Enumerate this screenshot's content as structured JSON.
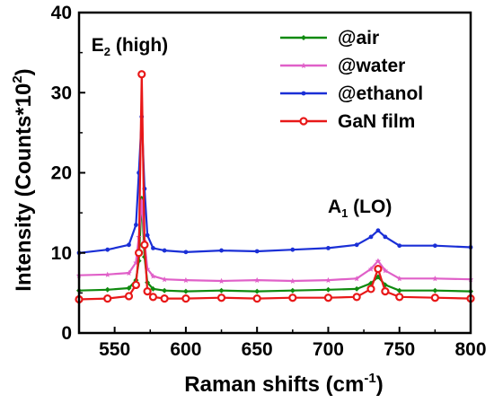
{
  "chart_data": {
    "type": "line",
    "xlabel_main": "Raman shifts (cm",
    "xlabel_sup": "-1",
    "xlabel_end": ")",
    "ylabel_main": "Intensity (Counts*10",
    "ylabel_sup": "2",
    "ylabel_end": ")",
    "xlim": [
      525,
      800
    ],
    "ylim": [
      0,
      40
    ],
    "x_ticks": [
      550,
      600,
      650,
      700,
      750,
      800
    ],
    "y_ticks": [
      0,
      10,
      20,
      30,
      40
    ],
    "grid": false,
    "legend_position": "top-right",
    "annotations": [
      {
        "main": "E",
        "sub": "2",
        "rest": " (high)",
        "x": 569,
        "y": 35.2
      },
      {
        "main": "A",
        "sub": "1",
        "rest": " (LO)",
        "x": 735,
        "y": 15.0
      }
    ],
    "series": [
      {
        "name": "@air",
        "color": "#0f8a0f",
        "marker": "diamond",
        "x": [
          525,
          545,
          560,
          565,
          567,
          569,
          571,
          573,
          577,
          585,
          600,
          625,
          650,
          675,
          700,
          720,
          730,
          735,
          740,
          750,
          775,
          800
        ],
        "y": [
          5.3,
          5.4,
          5.6,
          6.6,
          9.0,
          16.8,
          9.5,
          6.3,
          5.5,
          5.3,
          5.2,
          5.3,
          5.2,
          5.3,
          5.4,
          5.5,
          6.2,
          7.0,
          6.0,
          5.3,
          5.3,
          5.2
        ]
      },
      {
        "name": "@water",
        "color": "#e060c8",
        "marker": "star",
        "x": [
          525,
          545,
          560,
          565,
          567,
          569,
          571,
          573,
          577,
          585,
          600,
          625,
          650,
          675,
          700,
          720,
          730,
          735,
          740,
          750,
          775,
          800
        ],
        "y": [
          7.2,
          7.3,
          7.5,
          8.8,
          12.0,
          16.5,
          11.5,
          8.0,
          7.1,
          6.7,
          6.6,
          6.5,
          6.6,
          6.5,
          6.6,
          6.8,
          8.0,
          9.0,
          7.8,
          6.8,
          6.8,
          6.7
        ]
      },
      {
        "name": "@ethanol",
        "color": "#1a2fd6",
        "marker": "circle",
        "x": [
          525,
          545,
          560,
          565,
          567,
          569,
          571,
          573,
          577,
          585,
          600,
          625,
          650,
          675,
          700,
          720,
          730,
          735,
          740,
          750,
          775,
          800
        ],
        "y": [
          10.0,
          10.4,
          11.0,
          13.5,
          20.0,
          27.0,
          18.0,
          12.2,
          10.6,
          10.3,
          10.1,
          10.3,
          10.2,
          10.4,
          10.6,
          11.0,
          12.0,
          12.8,
          12.0,
          10.9,
          10.9,
          10.7
        ]
      },
      {
        "name": "GaN film",
        "color": "#e81818",
        "marker": "ring",
        "x": [
          525,
          545,
          560,
          565,
          567,
          569,
          571,
          573,
          577,
          585,
          600,
          625,
          650,
          675,
          700,
          720,
          730,
          735,
          740,
          750,
          775,
          800
        ],
        "y": [
          4.2,
          4.3,
          4.6,
          6.0,
          10.0,
          32.3,
          11.0,
          5.2,
          4.5,
          4.3,
          4.3,
          4.4,
          4.3,
          4.4,
          4.4,
          4.5,
          5.5,
          8.0,
          5.2,
          4.5,
          4.4,
          4.3
        ]
      }
    ]
  }
}
